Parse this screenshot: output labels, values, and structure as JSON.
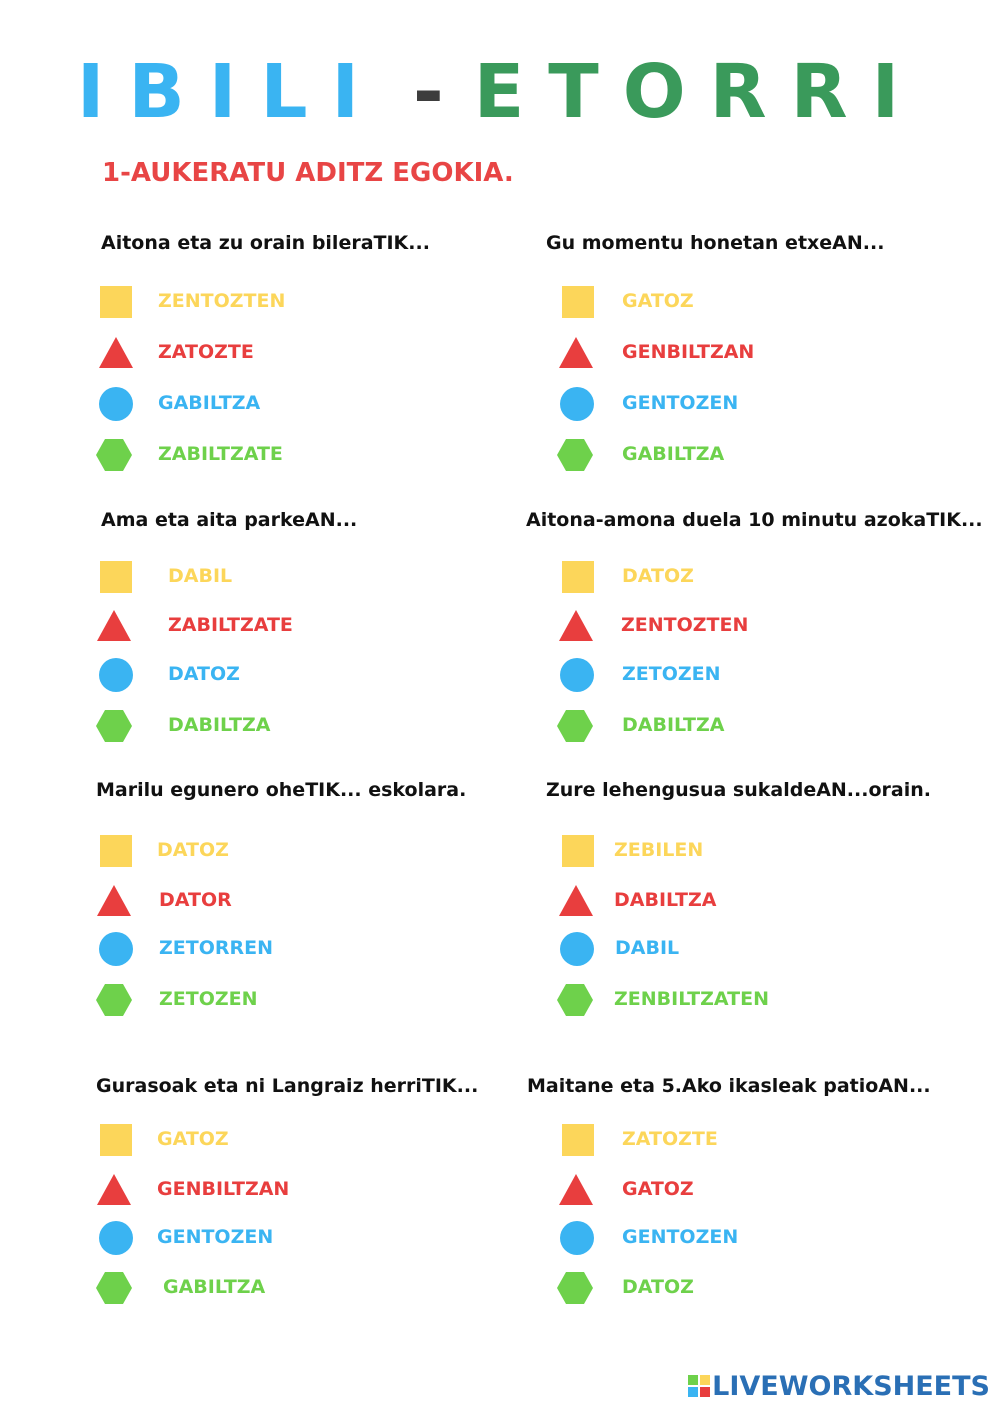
{
  "title": {
    "part1": "IBILI",
    "dash": "-",
    "part2": "ETORRI"
  },
  "instruction": "1-AUKERATU ADITZ EGOKIA.",
  "colors": {
    "yellow": "#fcd65a",
    "red": "#e83e3e",
    "blue": "#3ab4f2",
    "green": "#6ed14b"
  },
  "shape_icons": [
    "square-icon",
    "triangle-icon",
    "circle-icon",
    "hexagon-icon"
  ],
  "questions": [
    {
      "prompt": "Aitona eta zu orain bileraTIK...",
      "options": [
        "ZENTOZTEN",
        "ZATOZTE",
        "GABILTZA",
        "ZABILTZATE"
      ]
    },
    {
      "prompt": "Gu momentu honetan etxeAN...",
      "options": [
        "GATOZ",
        "GENBILTZAN",
        "GENTOZEN",
        "GABILTZA"
      ]
    },
    {
      "prompt": "Ama eta aita parkeAN...",
      "options": [
        "DABIL",
        "ZABILTZATE",
        "DATOZ",
        "DABILTZA"
      ]
    },
    {
      "prompt": "Aitona-amona duela 10 minutu azokaTIK...",
      "options": [
        "DATOZ",
        "ZENTOZTEN",
        "ZETOZEN",
        "DABILTZA"
      ]
    },
    {
      "prompt": "Marilu egunero oheTIK... eskolara.",
      "options": [
        "DATOZ",
        "DATOR",
        "ZETORREN",
        "ZETOZEN"
      ]
    },
    {
      "prompt": "Zure lehengusua sukaldeAN...orain.",
      "options": [
        "ZEBILEN",
        "DABILTZA",
        "DABIL",
        "ZENBILTZATEN"
      ]
    },
    {
      "prompt": "Gurasoak eta ni Langraiz herriTIK...",
      "options": [
        "GATOZ",
        "GENBILTZAN",
        "GENTOZEN",
        "GABILTZA"
      ]
    },
    {
      "prompt": "Maitane eta 5.Ako ikasleak patioAN...",
      "options": [
        "ZATOZTE",
        "GATOZ",
        "GENTOZEN",
        "DATOZ"
      ]
    }
  ],
  "footer": "LIVEWORKSHEETS"
}
